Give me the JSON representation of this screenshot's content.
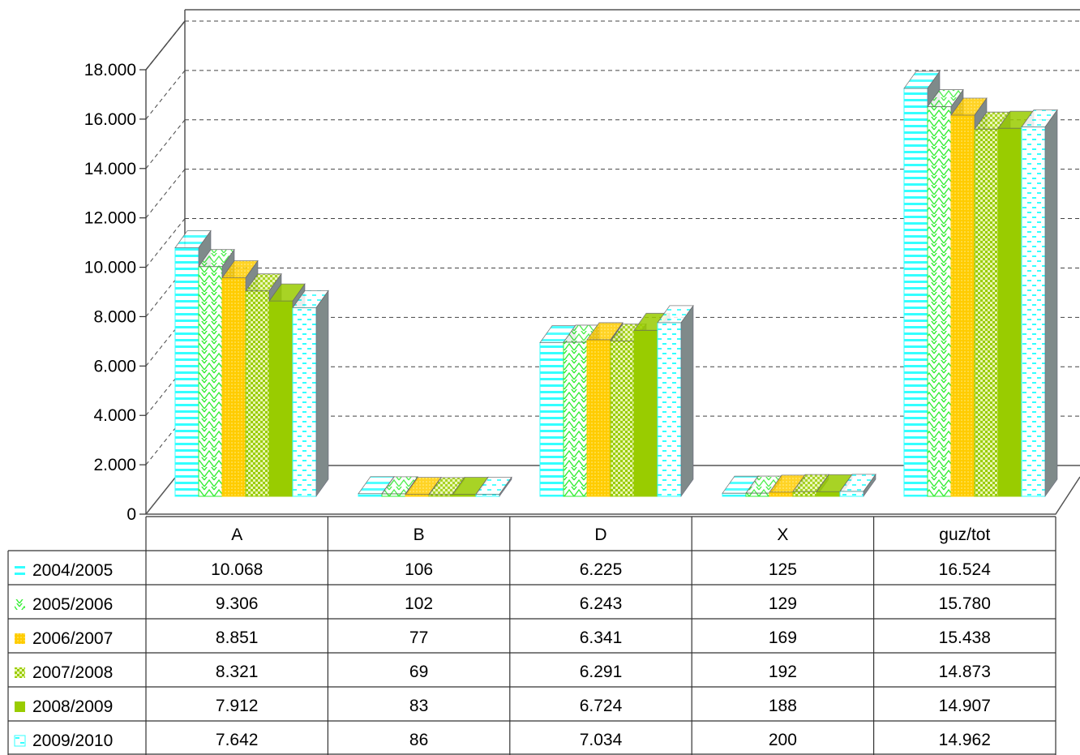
{
  "chart_data": {
    "type": "bar",
    "categories": [
      "A",
      "B",
      "D",
      "X",
      "guz/tot"
    ],
    "series": [
      {
        "name": "2004/2005",
        "values": [
          10068,
          106,
          6225,
          125,
          16524
        ],
        "labels": [
          "10.068",
          "106",
          "6.225",
          "125",
          "16.524"
        ],
        "color": "#33ffff",
        "pattern": "hlines"
      },
      {
        "name": "2005/2006",
        "values": [
          9306,
          102,
          6243,
          129,
          15780
        ],
        "labels": [
          "9.306",
          "102",
          "6.243",
          "129",
          "15.780"
        ],
        "color": "#33ee33",
        "pattern": "zigzag"
      },
      {
        "name": "2006/2007",
        "values": [
          8851,
          77,
          6341,
          169,
          15438
        ],
        "labels": [
          "8.851",
          "77",
          "6.341",
          "169",
          "15.438"
        ],
        "color": "#ffcc00",
        "pattern": "dots"
      },
      {
        "name": "2007/2008",
        "values": [
          8321,
          69,
          6291,
          192,
          14873
        ],
        "labels": [
          "8.321",
          "69",
          "6.291",
          "192",
          "14.873"
        ],
        "color": "#99cc00",
        "pattern": "checker"
      },
      {
        "name": "2008/2009",
        "values": [
          7912,
          83,
          6724,
          188,
          14907
        ],
        "labels": [
          "7.912",
          "83",
          "6.724",
          "188",
          "14.907"
        ],
        "color": "#99cc00",
        "pattern": "solid"
      },
      {
        "name": "2009/2010",
        "values": [
          7642,
          86,
          7034,
          200,
          14962
        ],
        "labels": [
          "7.642",
          "86",
          "7.034",
          "200",
          "14.962"
        ],
        "color": "#33ffff",
        "pattern": "dashes"
      }
    ],
    "yticks": [
      "0",
      "2.000",
      "4.000",
      "6.000",
      "8.000",
      "10.000",
      "12.000",
      "14.000",
      "16.000",
      "18.000"
    ],
    "ylim": [
      0,
      18000
    ],
    "grid": true,
    "legend": "data-table",
    "title": "",
    "xlabel": "",
    "ylabel": ""
  }
}
